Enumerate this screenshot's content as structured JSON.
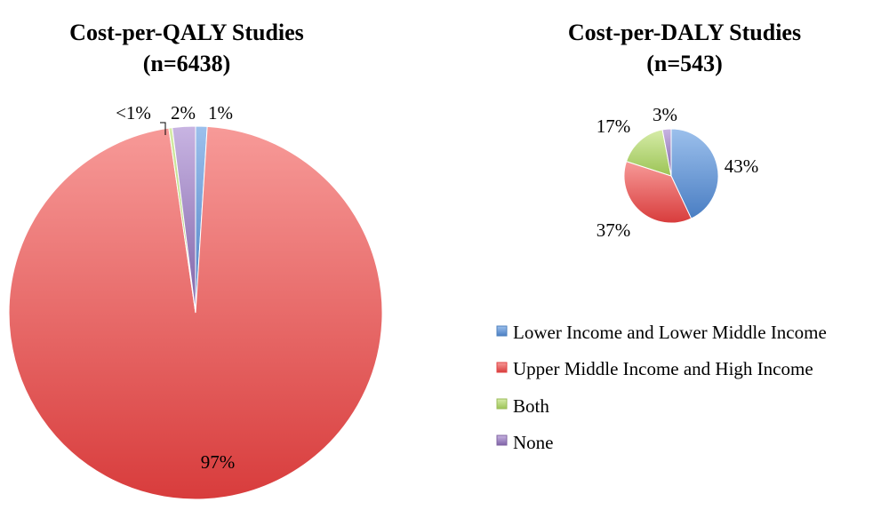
{
  "colors": {
    "lower": "#4f81bd",
    "upper": "#e04646",
    "both": "#9bbb59",
    "none": "#8064a2"
  },
  "legend": [
    {
      "label": "Lower Income and Lower Middle Income",
      "color_key": "lower"
    },
    {
      "label": "Upper Middle Income and High Income",
      "color_key": "upper"
    },
    {
      "label": "Both",
      "color_key": "both"
    },
    {
      "label": "None",
      "color_key": "none"
    }
  ],
  "chart_data": [
    {
      "type": "pie",
      "title": "Cost-per-QALY Studies",
      "subtitle": "(n=6438)",
      "slices": [
        {
          "name": "Lower Income and Lower Middle Income",
          "value": 1,
          "label": "1%",
          "color_key": "lower"
        },
        {
          "name": "Upper Middle Income and High Income",
          "value": 97,
          "label": "97%",
          "color_key": "upper"
        },
        {
          "name": "Both",
          "value": 0.3,
          "label": "<1%",
          "color_key": "both"
        },
        {
          "name": "None",
          "value": 2,
          "label": "2%",
          "color_key": "none"
        }
      ]
    },
    {
      "type": "pie",
      "title": "Cost-per-DALY Studies",
      "subtitle": "(n=543)",
      "slices": [
        {
          "name": "Lower Income and Lower Middle Income",
          "value": 43,
          "label": "43%",
          "color_key": "lower"
        },
        {
          "name": "Upper Middle Income and High Income",
          "value": 37,
          "label": "37%",
          "color_key": "upper"
        },
        {
          "name": "Both",
          "value": 17,
          "label": "17%",
          "color_key": "both"
        },
        {
          "name": "None",
          "value": 3,
          "label": "3%",
          "color_key": "none"
        }
      ]
    }
  ]
}
